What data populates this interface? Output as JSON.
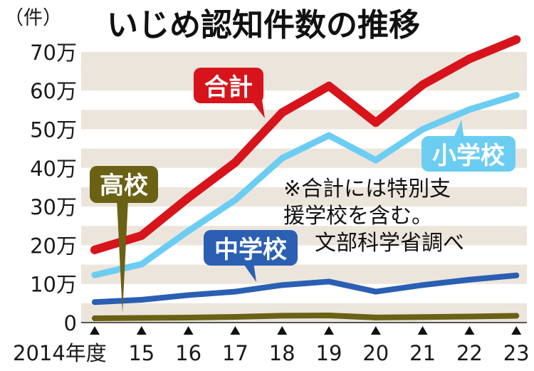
{
  "chart_data": {
    "type": "line",
    "title": "いじめ認知件数の推移",
    "ylabel": "（件）",
    "x_tick_labels": [
      "2014年度",
      "15",
      "16",
      "17",
      "18",
      "19",
      "20",
      "21",
      "22",
      "23"
    ],
    "x": [
      2014,
      2015,
      2016,
      2017,
      2018,
      2019,
      2020,
      2021,
      2022,
      2023
    ],
    "y_ticks": [
      0,
      100000,
      200000,
      300000,
      400000,
      500000,
      600000,
      700000
    ],
    "y_tick_labels": [
      "0",
      "10万",
      "20万",
      "30万",
      "40万",
      "50万",
      "60万",
      "70万"
    ],
    "ylim": [
      0,
      720000
    ],
    "grid": "horizontal bands",
    "series": [
      {
        "name": "合計",
        "color": "#d7141b",
        "values": [
          188000,
          225000,
          323000,
          414000,
          543000,
          612000,
          517000,
          615000,
          682000,
          732000
        ]
      },
      {
        "name": "小学校",
        "color": "#6ccdf2",
        "values": [
          123000,
          151000,
          237000,
          317000,
          425000,
          484000,
          420000,
          500000,
          551000,
          588000
        ]
      },
      {
        "name": "中学校",
        "color": "#2a5fb3",
        "values": [
          53000,
          59000,
          71000,
          80000,
          97000,
          106000,
          80000,
          97000,
          111000,
          122000
        ]
      },
      {
        "name": "高校",
        "color": "#6b6114",
        "values": [
          11000,
          12000,
          12900,
          14800,
          17700,
          18400,
          13100,
          14200,
          15600,
          17600
        ]
      }
    ],
    "note": [
      "※合計には特別支",
      "援学校を含む。",
      "文部科学省調べ"
    ]
  }
}
